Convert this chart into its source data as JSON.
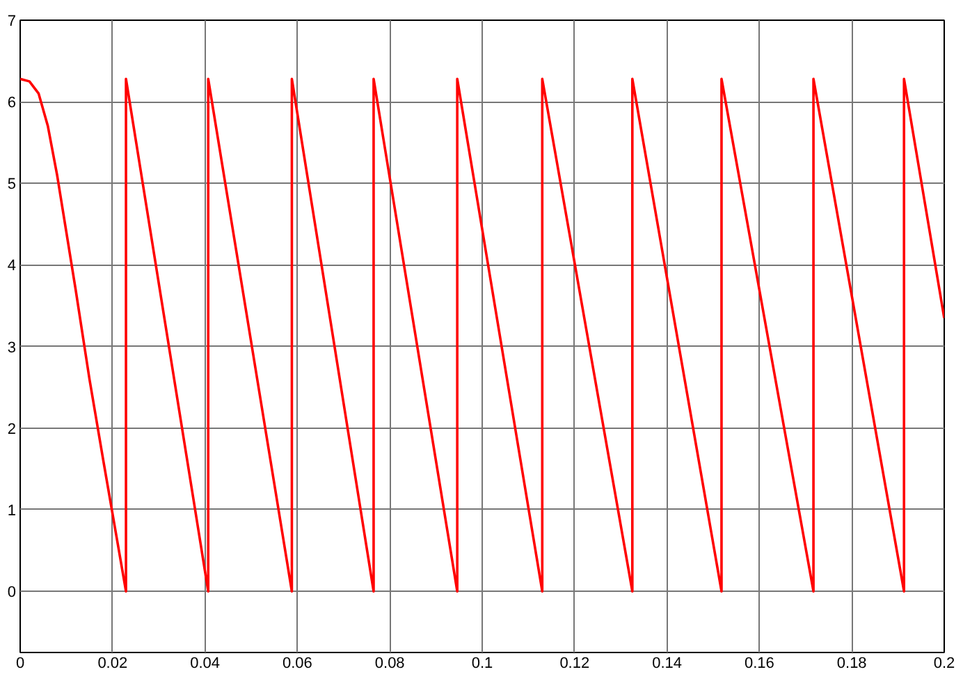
{
  "chart_data": {
    "type": "line",
    "xlim": [
      0,
      0.2
    ],
    "ylim": [
      -0.75,
      7
    ],
    "xticks": [
      0,
      0.02,
      0.04,
      0.06,
      0.08,
      0.1,
      0.12,
      0.14,
      0.16,
      0.18,
      0.2
    ],
    "yticks": [
      0,
      1,
      2,
      3,
      4,
      5,
      6,
      7
    ],
    "grid": true,
    "series": [
      {
        "color": "#ff0000",
        "x": [
          0,
          0.002,
          0.004,
          0.006,
          0.008,
          0.01,
          0.012,
          0.015,
          0.018,
          0.0229,
          0.0229,
          0.0407,
          0.0407,
          0.0588,
          0.0588,
          0.0765,
          0.0765,
          0.0946,
          0.0946,
          0.113,
          0.113,
          0.1325,
          0.1325,
          0.1518,
          0.1518,
          0.1717,
          0.1717,
          0.1913,
          0.1913,
          0.2
        ],
        "values": [
          6.28,
          6.25,
          6.1,
          5.7,
          5.1,
          4.4,
          3.7,
          2.6,
          1.6,
          0,
          6.28,
          0,
          6.28,
          0,
          6.28,
          0,
          6.28,
          0,
          6.28,
          0,
          6.28,
          0,
          6.28,
          0,
          6.28,
          0,
          6.28,
          0,
          6.28,
          3.35
        ]
      }
    ]
  }
}
